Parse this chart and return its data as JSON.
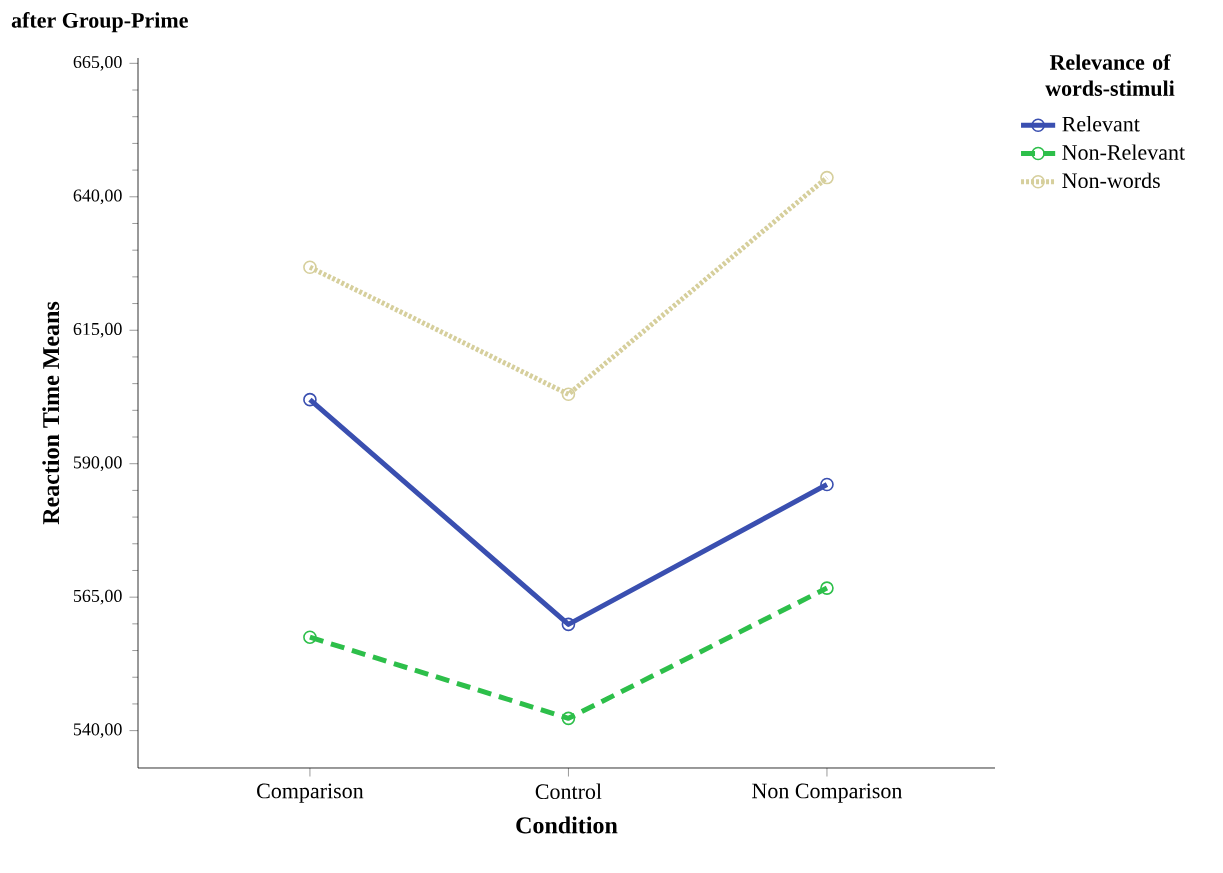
{
  "chart_data": {
    "type": "line",
    "title": "after Group-Prime",
    "xlabel": "Condition",
    "ylabel": "Reaction Time Means",
    "legend_title": "Relevance of words-stimuli",
    "categories": [
      "Comparison",
      "Control",
      "Non Comparison"
    ],
    "series": [
      {
        "name": "Relevant",
        "color": "#3a4fb0",
        "line_style": "solid",
        "values": [
          602.0,
          559.9,
          586.1
        ]
      },
      {
        "name": "Non-Relevant",
        "color": "#2dbf4a",
        "line_style": "dashed",
        "values": [
          557.5,
          542.3,
          566.7
        ]
      },
      {
        "name": "Non-words",
        "color": "#d6cf9c",
        "line_style": "dotted",
        "values": [
          626.8,
          603.0,
          643.6
        ]
      }
    ],
    "ylim": [
      533,
      666
    ],
    "yticks": [
      {
        "value": 540,
        "label": "540,00"
      },
      {
        "value": 565,
        "label": "565,00"
      },
      {
        "value": 590,
        "label": "590,00"
      },
      {
        "value": 615,
        "label": "615,00"
      },
      {
        "value": 640,
        "label": "640,00"
      },
      {
        "value": 665,
        "label": "665,00"
      }
    ],
    "marker": "circle",
    "legend": "top right",
    "grid": false
  }
}
